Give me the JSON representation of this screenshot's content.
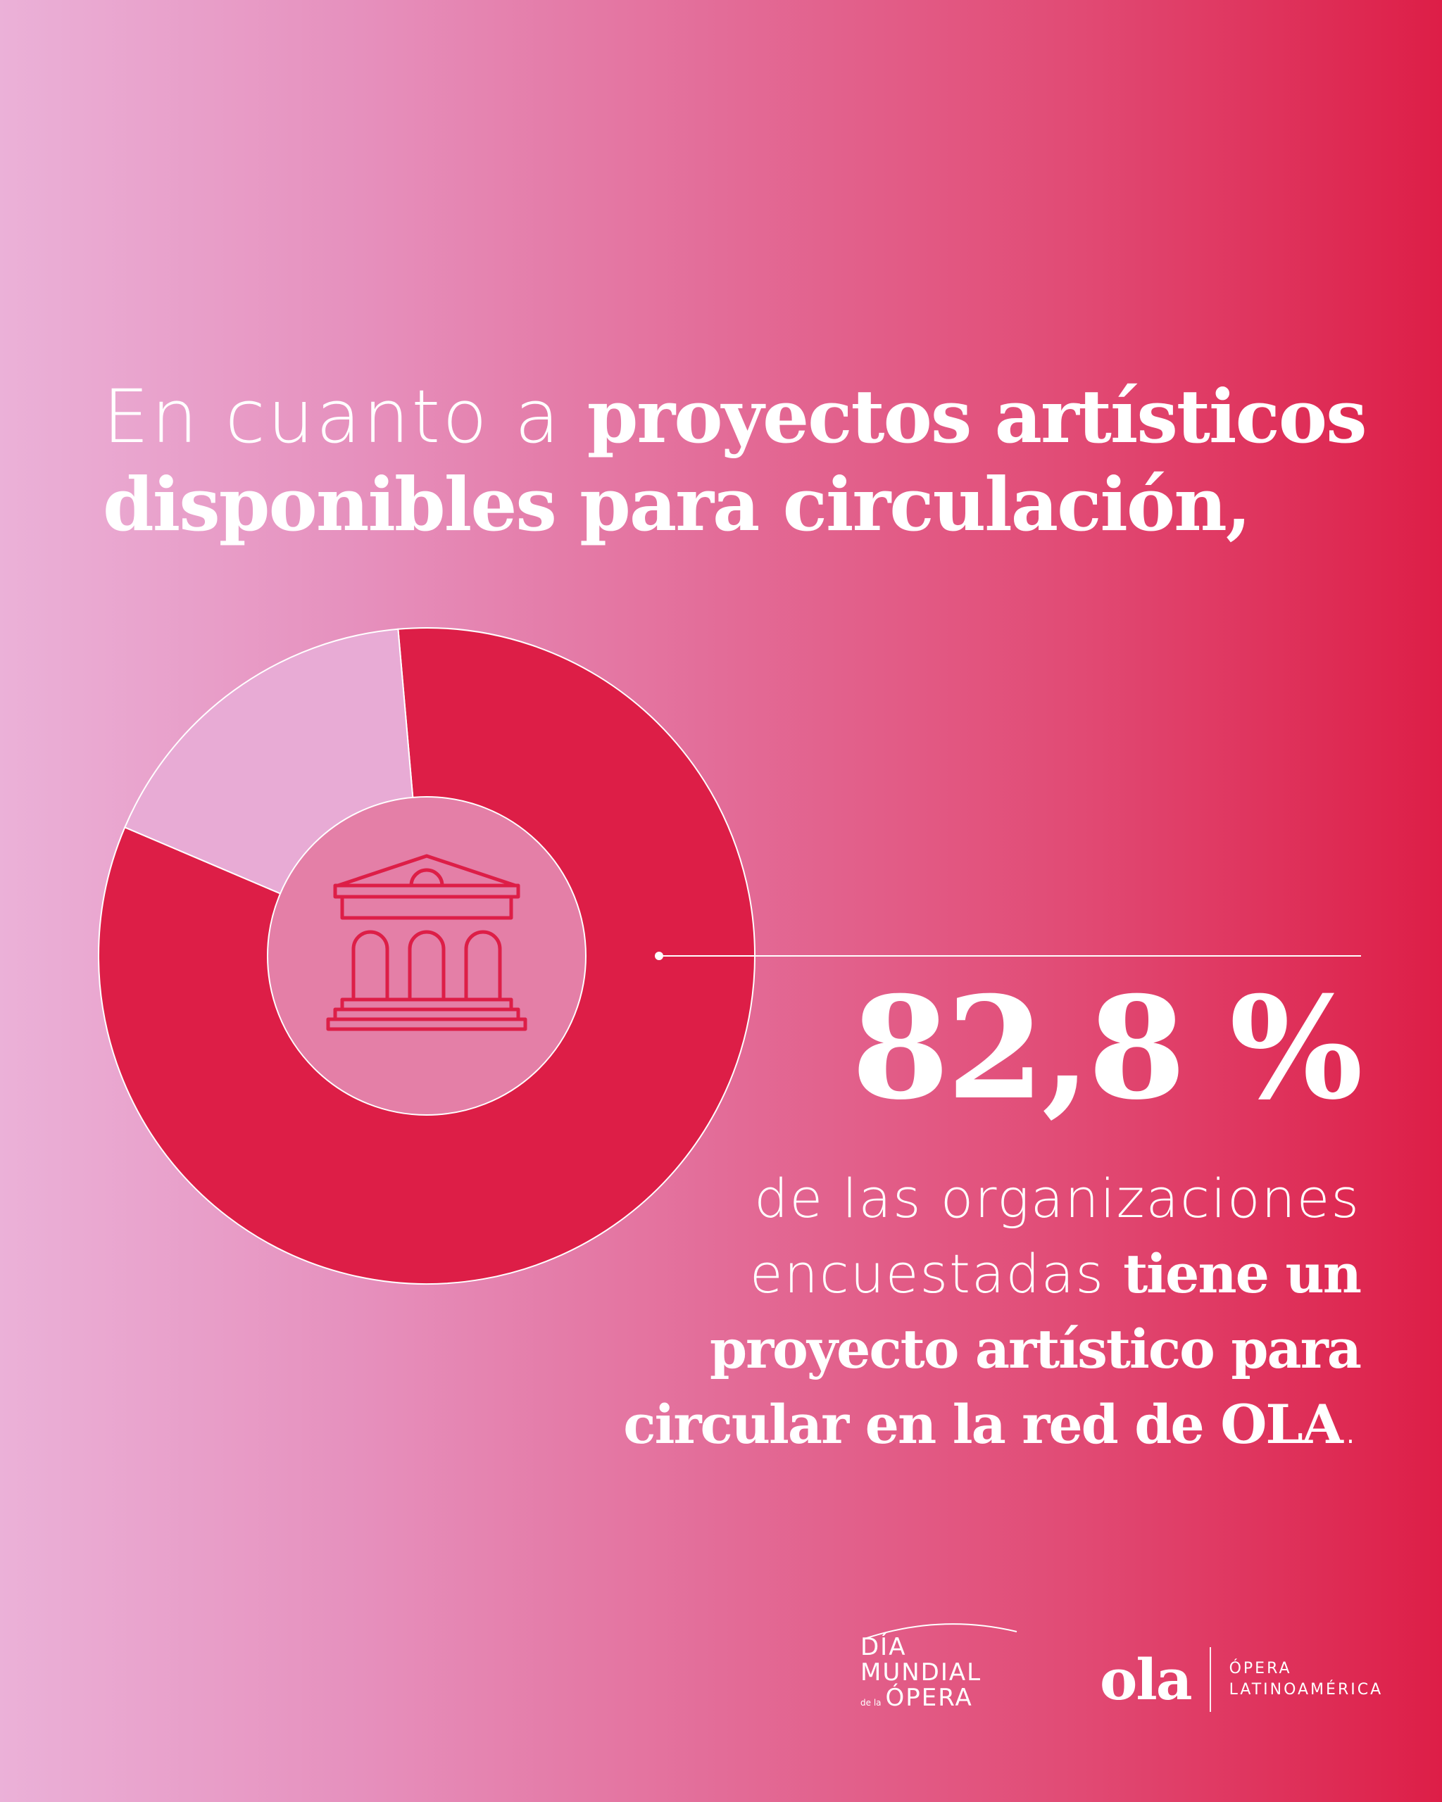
{
  "headline": {
    "light": "En cuanto a ",
    "bold": "proyectos artísticos disponibles para circulación,"
  },
  "stat": {
    "value": "82,8 %",
    "desc_light": "de las organizaciones encuestadas ",
    "desc_bold": "tiene un proyecto artístico para circular en la red de OLA",
    "desc_end": "."
  },
  "chart_data": {
    "type": "pie",
    "style": "donut",
    "values": [
      82.8,
      17.2
    ],
    "colors": [
      "#dd1e47",
      "#e8abd5"
    ],
    "center_icon": "theater-building-icon"
  },
  "logos": {
    "dia_line1": "DÍA",
    "dia_line2": "MUNDIAL",
    "dia_dela": "de la",
    "dia_line3": "ÓPERA",
    "ola": "ola",
    "ola_sub1": "ÓPERA",
    "ola_sub2": "LATINOAMÉRICA"
  },
  "colors": {
    "accent": "#dd1e47",
    "secondary": "#e8abd5",
    "text": "#ffffff"
  }
}
